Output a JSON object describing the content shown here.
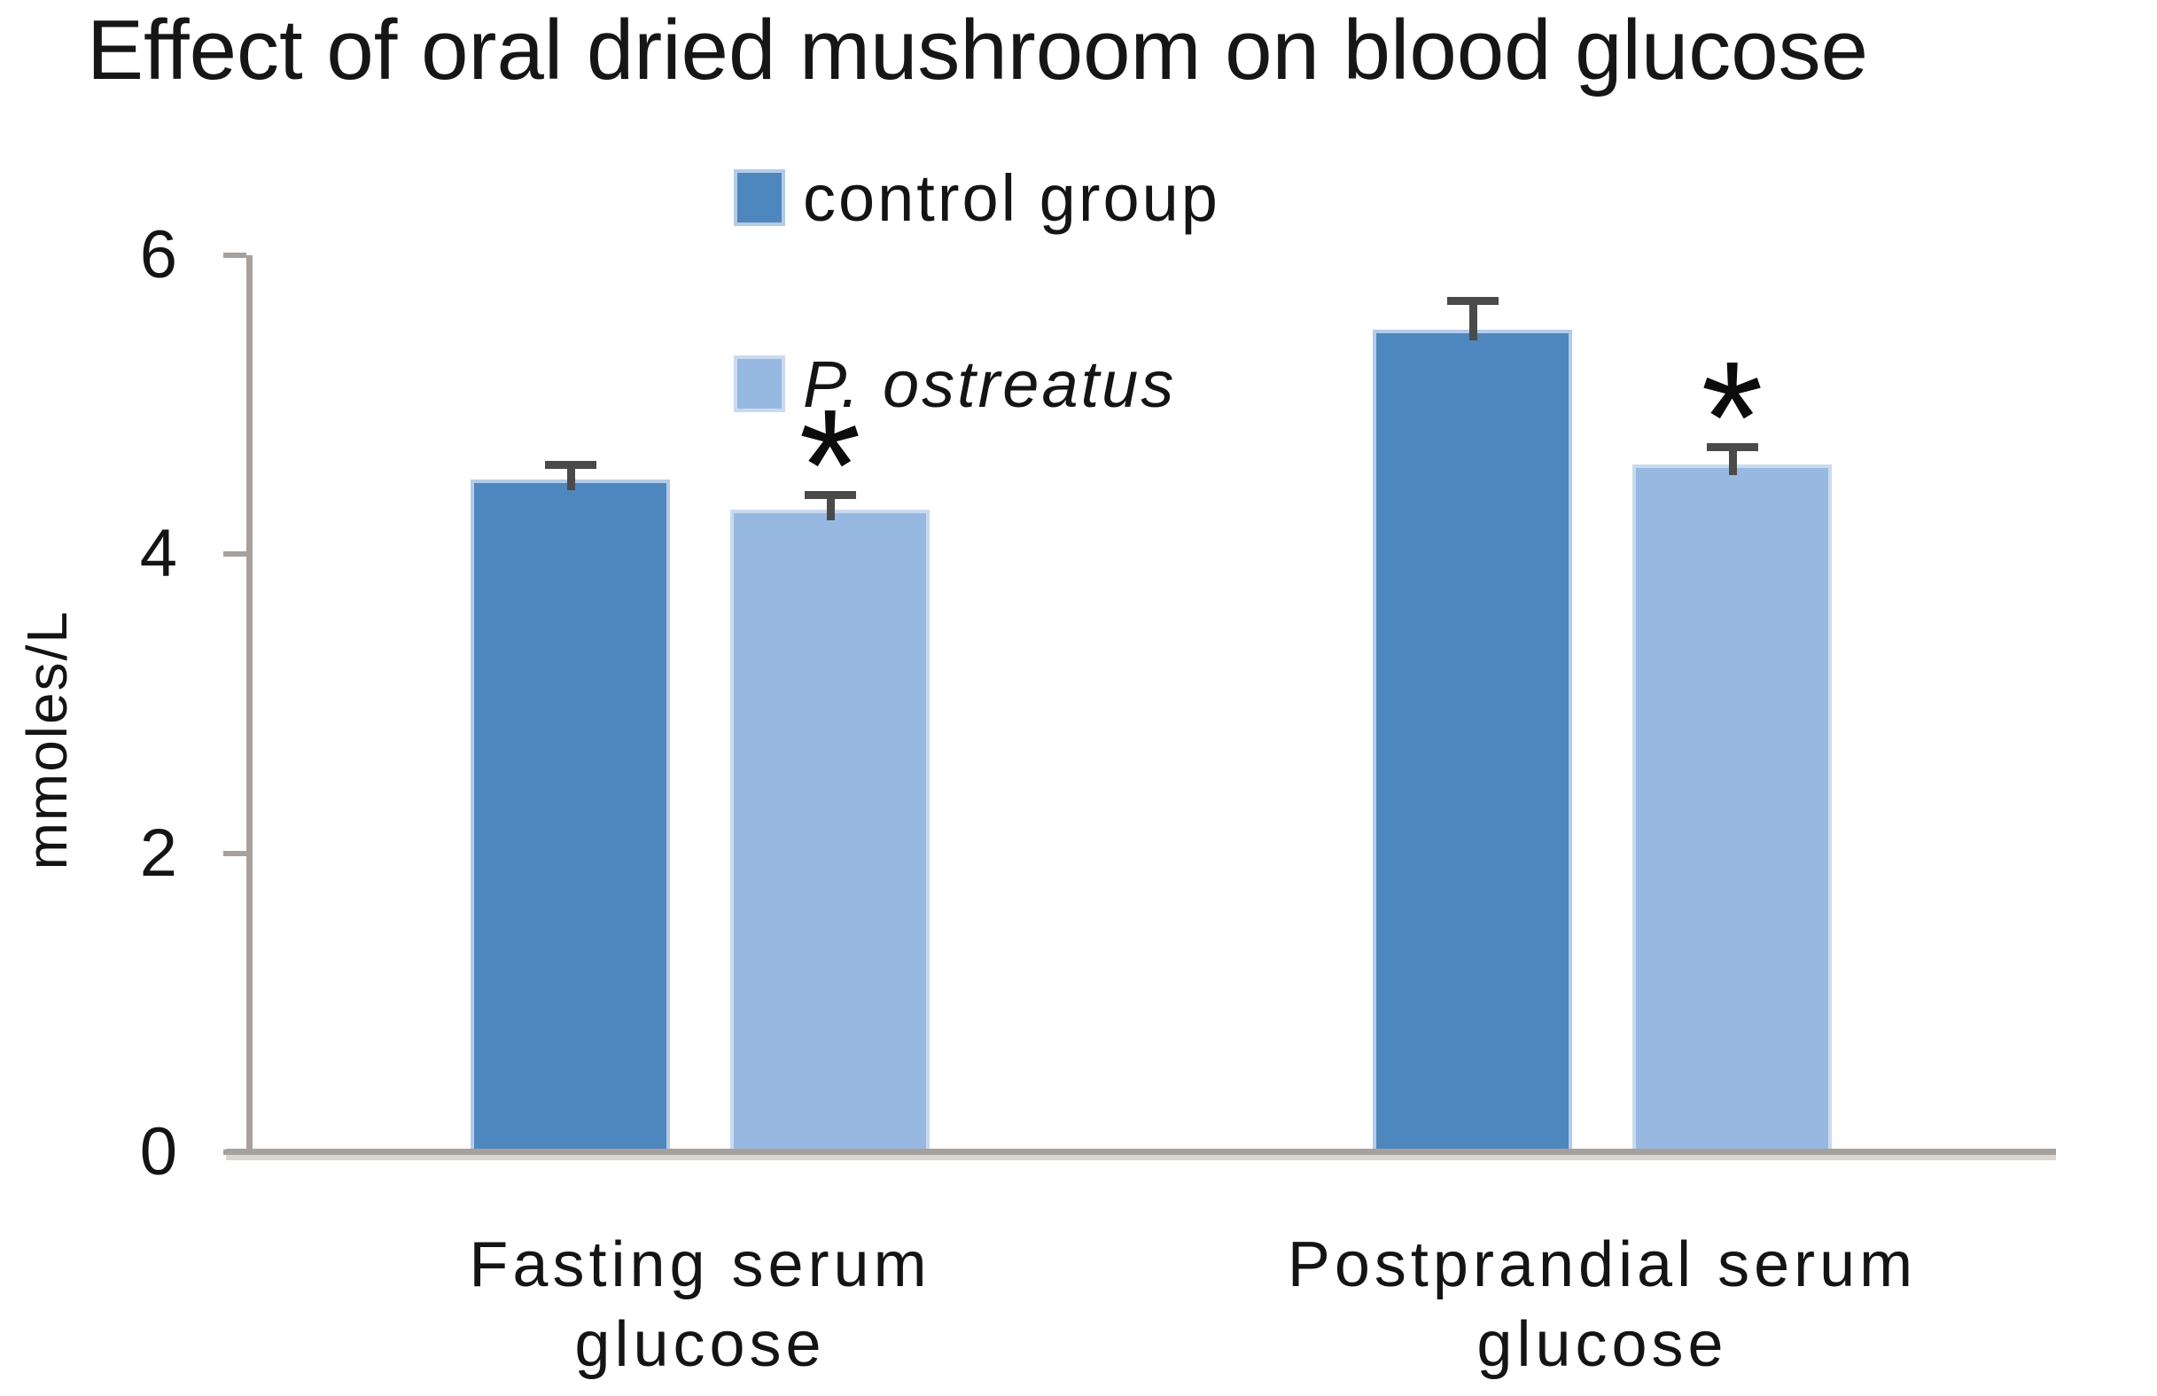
{
  "chart_data": {
    "type": "bar",
    "title": "Effect of oral dried mushroom on blood glucose",
    "xlabel": "",
    "ylabel": "mmoles/L",
    "ylim": [
      0,
      6
    ],
    "yticks": [
      0,
      2,
      4,
      6
    ],
    "grid": false,
    "legend_position": "top-center",
    "categories": [
      "Fasting serum glucose",
      "Postprandial serum glucose"
    ],
    "series": [
      {
        "name": "control group",
        "values": [
          4.5,
          5.5
        ],
        "errors": [
          0.1,
          0.2
        ],
        "markers": [
          "",
          ""
        ],
        "color": "#4E87BD",
        "edge_color": "#B3CBE9"
      },
      {
        "name": "P. ostreatus",
        "values": [
          4.3,
          4.6
        ],
        "errors": [
          0.1,
          0.12
        ],
        "markers": [
          "*",
          "*"
        ],
        "color": "#97B8E0",
        "edge_color": "#C9DAF0"
      }
    ],
    "significance_marker": "*",
    "colors": {
      "axis": "#A6A19C",
      "error_bar": "#4A4A4A",
      "text": "#141414"
    }
  }
}
